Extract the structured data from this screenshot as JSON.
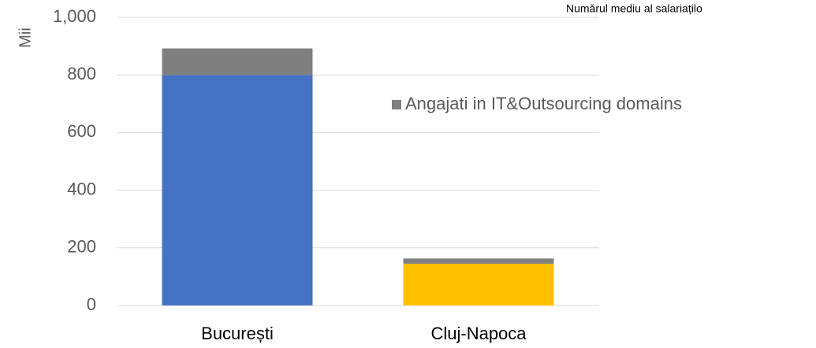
{
  "chart_data": {
    "type": "stacked_bar",
    "title": "Numărul mediu al salariațilo",
    "y_label": "Mii",
    "categories": [
      "București",
      "Cluj-Napoca"
    ],
    "series": [
      {
        "colors": [
          "#4472c4",
          "#ffc000"
        ],
        "values": [
          800,
          145
        ]
      },
      {
        "name": "Angajati in IT&Outsourcing domains",
        "color": "#7f7f7f",
        "values": [
          92,
          18
        ]
      }
    ],
    "ylim": [
      0,
      1000
    ],
    "yticks": [
      0,
      200,
      400,
      600,
      800,
      {
        "value": 1000,
        "label": "1,000"
      }
    ],
    "grid": true,
    "legend": "right"
  }
}
